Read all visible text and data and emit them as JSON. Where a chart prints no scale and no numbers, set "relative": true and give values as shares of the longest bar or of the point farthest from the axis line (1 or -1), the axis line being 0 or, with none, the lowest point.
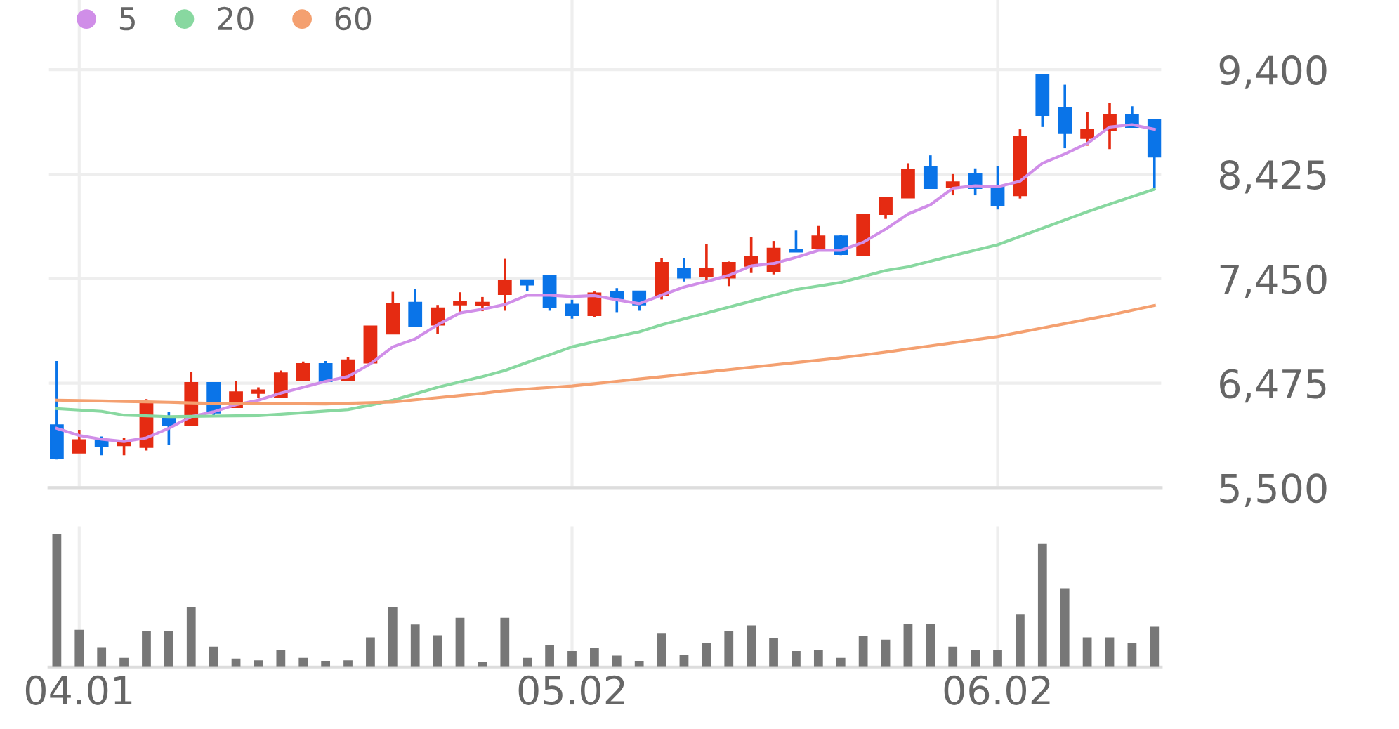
{
  "chart_data": [
    {
      "type": "candlestick",
      "categories": [
        null,
        "04.01",
        null,
        null,
        null,
        null,
        null,
        null,
        null,
        null,
        null,
        null,
        null,
        null,
        null,
        null,
        null,
        null,
        null,
        null,
        null,
        null,
        null,
        "05.02",
        null,
        null,
        null,
        null,
        null,
        null,
        null,
        null,
        null,
        null,
        null,
        null,
        null,
        null,
        null,
        null,
        null,
        null,
        "06.02",
        null,
        null,
        null,
        null,
        null,
        null,
        null
      ],
      "ohlc": [
        [
          6084,
          6682,
          5764,
          5777
        ],
        [
          5826,
          6040,
          5826,
          5944
        ],
        [
          5944,
          5978,
          5803,
          5887
        ],
        [
          5895,
          5965,
          5803,
          5918
        ],
        [
          5878,
          6326,
          5847,
          6295
        ],
        [
          6163,
          6207,
          5899,
          6084
        ],
        [
          6084,
          6581,
          6084,
          6479
        ],
        [
          6479,
          6479,
          6172,
          6199
        ],
        [
          6251,
          6493,
          6251,
          6392
        ],
        [
          6383,
          6436,
          6340,
          6409
        ],
        [
          6347,
          6594,
          6347,
          6568
        ],
        [
          6506,
          6677,
          6506,
          6656
        ],
        [
          6656,
          6682,
          6493,
          6493
        ],
        [
          6502,
          6721,
          6502,
          6690
        ],
        [
          6667,
          7006,
          6656,
          7006
        ],
        [
          6937,
          7327,
          6937,
          7217
        ],
        [
          7227,
          7357,
          7006,
          7006
        ],
        [
          7020,
          7205,
          6933,
          7174
        ],
        [
          7209,
          7323,
          7138,
          7236
        ],
        [
          7200,
          7279,
          7147,
          7227
        ],
        [
          7306,
          7635,
          7151,
          7428
        ],
        [
          7437,
          7437,
          7336,
          7394
        ],
        [
          7481,
          7481,
          7151,
          7183
        ],
        [
          7209,
          7253,
          7077,
          7108
        ],
        [
          7108,
          7330,
          7095,
          7314
        ],
        [
          7328,
          7362,
          7138,
          7263
        ],
        [
          7332,
          7335,
          7151,
          7209
        ],
        [
          7296,
          7643,
          7256,
          7599
        ],
        [
          7547,
          7643,
          7424,
          7460
        ],
        [
          7472,
          7776,
          7428,
          7547
        ],
        [
          7460,
          7610,
          7381,
          7599
        ],
        [
          7569,
          7841,
          7503,
          7656
        ],
        [
          7517,
          7802,
          7490,
          7731
        ],
        [
          7722,
          7899,
          7701,
          7701
        ],
        [
          7731,
          7942,
          7731,
          7846
        ],
        [
          7846,
          7860,
          7670,
          7679
        ],
        [
          7666,
          8044,
          7660,
          8044
        ],
        [
          8052,
          8210,
          8008,
          8206
        ],
        [
          8206,
          8527,
          8206,
          8469
        ],
        [
          8492,
          8601,
          8294,
          8294
        ],
        [
          8307,
          8426,
          8228,
          8351
        ],
        [
          8426,
          8479,
          8228,
          8294
        ],
        [
          8307,
          8501,
          8096,
          8132
        ],
        [
          8228,
          8844,
          8198,
          8778
        ],
        [
          9349,
          9349,
          8865,
          8976
        ],
        [
          9041,
          9260,
          8667,
          8808
        ],
        [
          8762,
          9007,
          8690,
          8841
        ],
        [
          8835,
          9092,
          8659,
          8976
        ],
        [
          8976,
          9059,
          8865,
          8865
        ],
        [
          8931,
          8931,
          8294,
          8588
        ]
      ],
      "colors": [
        "#0a74e8",
        "#e52b12",
        "#0a74e8",
        "#e52b12",
        "#e52b12",
        "#0a74e8",
        "#e52b12",
        "#0a74e8",
        "#e52b12",
        "#e52b12",
        "#e52b12",
        "#e52b12",
        "#0a74e8",
        "#e52b12",
        "#e52b12",
        "#e52b12",
        "#0a74e8",
        "#e52b12",
        "#e52b12",
        "#e52b12",
        "#e52b12",
        "#0a74e8",
        "#0a74e8",
        "#0a74e8",
        "#e52b12",
        "#0a74e8",
        "#0a74e8",
        "#e52b12",
        "#0a74e8",
        "#e52b12",
        "#e52b12",
        "#e52b12",
        "#e52b12",
        "#0a74e8",
        "#e52b12",
        "#0a74e8",
        "#e52b12",
        "#e52b12",
        "#e52b12",
        "#0a74e8",
        "#e52b12",
        "#0a74e8",
        "#0a74e8",
        "#e52b12",
        "#0a74e8",
        "#0a74e8",
        "#e52b12",
        "#e52b12",
        "#0a74e8",
        "#0a74e8"
      ],
      "series": [
        {
          "type": "line",
          "name": "5",
          "color": "#d08ee8",
          "values": [
            6054,
            5988,
            5952,
            5931,
            5965,
            6054,
            6163,
            6208,
            6274,
            6317,
            6383,
            6436,
            6492,
            6537,
            6656,
            6814,
            6888,
            7020,
            7130,
            7165,
            7209,
            7296,
            7296,
            7283,
            7292,
            7253,
            7217,
            7296,
            7372,
            7424,
            7481,
            7569,
            7592,
            7648,
            7714,
            7714,
            7789,
            7912,
            8053,
            8140,
            8294,
            8317,
            8307,
            8360,
            8527,
            8614,
            8712,
            8865,
            8887,
            8844
          ]
        },
        {
          "type": "line",
          "name": "20",
          "color": "#88d8a0",
          "values": [
            6238,
            6225,
            6212,
            6176,
            6170,
            6163,
            6165,
            6168,
            6170,
            6172,
            6185,
            6200,
            6215,
            6229,
            6270,
            6317,
            6375,
            6436,
            6487,
            6537,
            6594,
            6669,
            6740,
            6814,
            6862,
            6910,
            6954,
            7020,
            7075,
            7130,
            7185,
            7240,
            7295,
            7349,
            7382,
            7415,
            7470,
            7526,
            7560,
            7613,
            7665,
            7716,
            7767,
            7844,
            7921,
            7998,
            8074,
            8145,
            8215,
            8285
          ]
        },
        {
          "type": "line",
          "name": "60",
          "color": "#f4a070",
          "values": [
            6317,
            6313,
            6309,
            6305,
            6301,
            6297,
            6292,
            6287,
            6286,
            6285,
            6284,
            6283,
            6282,
            6288,
            6294,
            6300,
            6320,
            6340,
            6360,
            6380,
            6405,
            6420,
            6435,
            6449,
            6470,
            6492,
            6514,
            6536,
            6558,
            6580,
            6602,
            6624,
            6646,
            6668,
            6690,
            6712,
            6738,
            6765,
            6794,
            6823,
            6852,
            6881,
            6910,
            6950,
            6990,
            7030,
            7070,
            7110,
            7155,
            7200
          ]
        }
      ],
      "ylim": [
        5500,
        10050
      ],
      "yticks": [
        {
          "value": 5500,
          "label": "5,500"
        },
        {
          "value": 6475,
          "label": "6,475"
        },
        {
          "value": 7450,
          "label": "7,450"
        },
        {
          "value": 8425,
          "label": "8,425"
        },
        {
          "value": 9400,
          "label": "9,400"
        }
      ],
      "grid": true,
      "legend": "top left",
      "tick_labels": "y"
    },
    {
      "type": "bar",
      "categories": [
        null,
        "04.01",
        null,
        null,
        null,
        null,
        null,
        null,
        null,
        null,
        null,
        null,
        null,
        null,
        null,
        null,
        null,
        null,
        null,
        null,
        null,
        null,
        null,
        "05.02",
        null,
        null,
        null,
        null,
        null,
        null,
        null,
        null,
        null,
        null,
        null,
        null,
        null,
        null,
        null,
        null,
        null,
        null,
        "06.02",
        null,
        null,
        null,
        null,
        null,
        null,
        null
      ],
      "values": [
        1,
        0.28,
        0.149,
        0.069,
        0.269,
        0.269,
        0.451,
        0.154,
        0.063,
        0.051,
        0.131,
        0.069,
        0.046,
        0.051,
        0.223,
        0.451,
        0.32,
        0.24,
        0.371,
        0.04,
        0.371,
        0.069,
        0.166,
        0.12,
        0.143,
        0.086,
        0.046,
        0.251,
        0.091,
        0.183,
        0.269,
        0.314,
        0.217,
        0.12,
        0.126,
        0.069,
        0.234,
        0.206,
        0.326,
        0.326,
        0.154,
        0.131,
        0.131,
        0.4,
        0.931,
        0.594,
        0.223,
        0.223,
        0.183,
        0.303
      ],
      "color": "#777777",
      "relative": true,
      "grid": "x",
      "tick_labels": "x"
    }
  ]
}
